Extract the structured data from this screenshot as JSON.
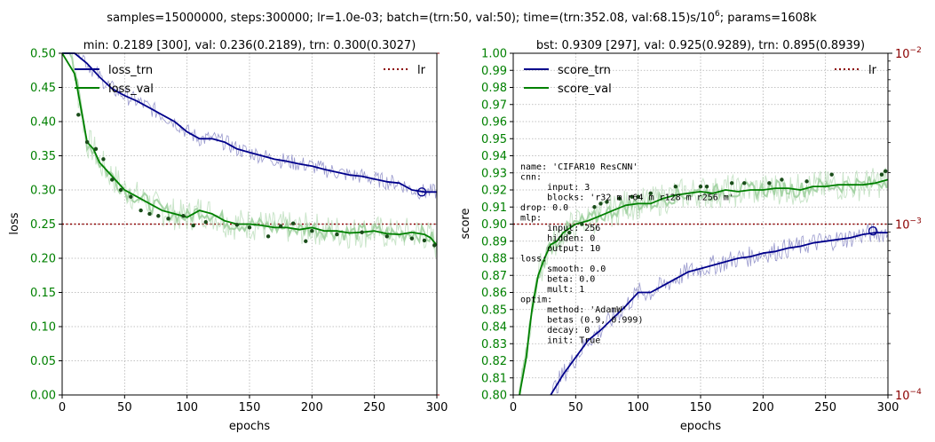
{
  "suptitle": "samples=15000000, steps:300000; lr=1.0e-03; batch=(trn:50, val:50); time=(trn:352.08, val:68.15)s/10",
  "suptitle_sup": "6",
  "suptitle_tail": "; params=1608k",
  "colors": {
    "trn": "#00008b",
    "val": "#008000",
    "lr": "#8b0000",
    "val_light": "#9ed09e",
    "trn_light": "#8080c0",
    "grid": "#b0b0b0"
  },
  "chart_data": [
    {
      "type": "line",
      "title": "min: 0.2189 [300], val: 0.236(0.2189), trn: 0.300(0.3027)",
      "xlabel": "epochs",
      "ylabel": "loss",
      "xlim": [
        0,
        300
      ],
      "ylim": [
        0.0,
        0.5
      ],
      "xticks": [
        "0",
        "50",
        "100",
        "150",
        "200",
        "250",
        "300"
      ],
      "yticks": [
        "0.00",
        "0.05",
        "0.10",
        "0.15",
        "0.20",
        "0.25",
        "0.30",
        "0.35",
        "0.40",
        "0.45",
        "0.50"
      ],
      "grid": true,
      "legend": [
        "loss_trn",
        "loss_val"
      ],
      "legend_right": "lr",
      "series": [
        {
          "name": "loss_trn",
          "x": [
            0,
            10,
            20,
            30,
            40,
            50,
            60,
            70,
            80,
            90,
            100,
            110,
            120,
            130,
            140,
            150,
            160,
            170,
            180,
            190,
            200,
            210,
            220,
            230,
            240,
            250,
            260,
            270,
            280,
            290,
            300
          ],
          "values": [
            0.58,
            0.52,
            0.485,
            0.465,
            0.448,
            0.438,
            0.43,
            0.42,
            0.41,
            0.4,
            0.385,
            0.375,
            0.375,
            0.37,
            0.36,
            0.355,
            0.35,
            0.345,
            0.342,
            0.338,
            0.335,
            0.33,
            0.326,
            0.322,
            0.32,
            0.316,
            0.312,
            0.31,
            0.3,
            0.297,
            0.297
          ]
        },
        {
          "name": "loss_val",
          "x": [
            0,
            10,
            15,
            20,
            25,
            30,
            40,
            50,
            60,
            70,
            80,
            90,
            100,
            110,
            120,
            130,
            140,
            150,
            160,
            170,
            180,
            190,
            200,
            210,
            220,
            230,
            240,
            250,
            260,
            270,
            280,
            290,
            295,
            300
          ],
          "values": [
            0.6,
            0.47,
            0.42,
            0.37,
            0.36,
            0.34,
            0.32,
            0.3,
            0.29,
            0.28,
            0.27,
            0.265,
            0.26,
            0.27,
            0.265,
            0.255,
            0.25,
            0.25,
            0.248,
            0.245,
            0.245,
            0.242,
            0.245,
            0.24,
            0.24,
            0.237,
            0.238,
            0.24,
            0.236,
            0.235,
            0.238,
            0.235,
            0.23,
            0.219
          ]
        },
        {
          "name": "best_val",
          "x": [
            13,
            20,
            27,
            33,
            40,
            47,
            55,
            63,
            70,
            77,
            85,
            97,
            105,
            115,
            140,
            150,
            165,
            175,
            185,
            195,
            200,
            220,
            240,
            260,
            280,
            290,
            298
          ],
          "values": [
            0.41,
            0.37,
            0.36,
            0.345,
            0.315,
            0.3,
            0.29,
            0.27,
            0.265,
            0.262,
            0.258,
            0.262,
            0.248,
            0.253,
            0.249,
            0.245,
            0.232,
            0.247,
            0.251,
            0.225,
            0.24,
            0.235,
            0.238,
            0.232,
            0.229,
            0.226,
            0.219
          ]
        }
      ],
      "lr_level": 0.25,
      "best_marker": {
        "x": 288,
        "y": 0.297
      }
    },
    {
      "type": "line",
      "title": "bst: 0.9309 [297], val: 0.925(0.9289),  trn:  0.895(0.8939)",
      "xlabel": "epochs",
      "ylabel": "score",
      "xlim": [
        0,
        300
      ],
      "ylim": [
        0.8,
        1.0
      ],
      "xticks": [
        "0",
        "50",
        "100",
        "150",
        "200",
        "250",
        "300"
      ],
      "yticks": [
        "0.80",
        "0.81",
        "0.82",
        "0.83",
        "0.84",
        "0.85",
        "0.86",
        "0.87",
        "0.88",
        "0.89",
        "0.90",
        "0.91",
        "0.92",
        "0.93",
        "0.94",
        "0.95",
        "0.96",
        "0.97",
        "0.98",
        "0.99",
        "1.00"
      ],
      "y2_scale": "log",
      "y2lim": [
        "1e-4",
        "1e-2"
      ],
      "y2ticks": [
        {
          "base": "10",
          "exp": "−2"
        },
        {
          "base": "10",
          "exp": "−3"
        },
        {
          "base": "10",
          "exp": "−4"
        }
      ],
      "grid": true,
      "legend": [
        "score_trn",
        "score_val"
      ],
      "legend_right": "lr",
      "series": [
        {
          "name": "score_trn",
          "x": [
            30,
            40,
            50,
            60,
            70,
            80,
            90,
            100,
            110,
            120,
            130,
            140,
            150,
            160,
            170,
            180,
            190,
            200,
            210,
            220,
            230,
            240,
            250,
            260,
            270,
            280,
            290,
            300
          ],
          "values": [
            0.8,
            0.812,
            0.822,
            0.832,
            0.838,
            0.845,
            0.852,
            0.86,
            0.86,
            0.864,
            0.868,
            0.872,
            0.874,
            0.876,
            0.878,
            0.88,
            0.881,
            0.883,
            0.884,
            0.886,
            0.887,
            0.889,
            0.89,
            0.891,
            0.892,
            0.894,
            0.895,
            0.895
          ]
        },
        {
          "name": "score_val",
          "x": [
            5,
            10,
            15,
            20,
            25,
            30,
            35,
            40,
            50,
            60,
            70,
            80,
            90,
            100,
            110,
            120,
            130,
            140,
            150,
            160,
            170,
            180,
            190,
            200,
            210,
            220,
            230,
            240,
            250,
            260,
            270,
            280,
            290,
            300
          ],
          "values": [
            0.8,
            0.82,
            0.85,
            0.87,
            0.88,
            0.888,
            0.89,
            0.895,
            0.9,
            0.902,
            0.905,
            0.908,
            0.911,
            0.912,
            0.912,
            0.915,
            0.917,
            0.918,
            0.919,
            0.918,
            0.92,
            0.919,
            0.92,
            0.92,
            0.921,
            0.921,
            0.92,
            0.922,
            0.922,
            0.923,
            0.923,
            0.923,
            0.924,
            0.926
          ]
        },
        {
          "name": "best_val",
          "x": [
            45,
            55,
            65,
            70,
            75,
            85,
            95,
            100,
            110,
            130,
            150,
            155,
            175,
            185,
            205,
            215,
            235,
            255,
            295,
            298
          ],
          "values": [
            0.895,
            0.9,
            0.91,
            0.912,
            0.913,
            0.915,
            0.916,
            0.916,
            0.918,
            0.922,
            0.922,
            0.922,
            0.924,
            0.924,
            0.924,
            0.926,
            0.925,
            0.929,
            0.929,
            0.931
          ]
        }
      ],
      "lr_level": 0.001,
      "best_marker": {
        "x": 288,
        "y": 0.896
      },
      "annotation": [
        "name: 'CIFAR10 ResCNN'",
        "cnn:",
        "     input: 3",
        "     blocks: 'r32 m r64 m r128 m r256 m'",
        "drop: 0.0",
        "mlp:",
        "     input: 256",
        "     hidden: 0",
        "     output: 10",
        "loss:",
        "     smooth: 0.0",
        "     beta: 0.0",
        "     mult: 1",
        "optim:",
        "     method: 'AdamW'",
        "     betas (0.9, 0.999)",
        "     decay: 0",
        "     init: True"
      ]
    }
  ]
}
